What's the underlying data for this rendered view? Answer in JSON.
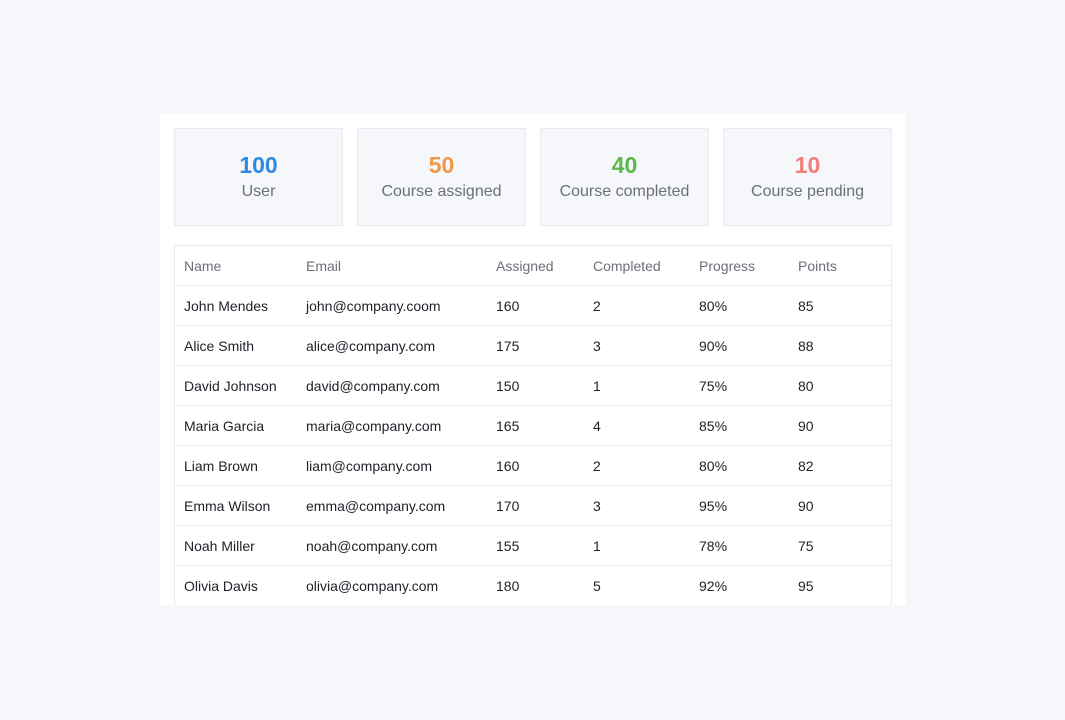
{
  "stats": [
    {
      "value": "100",
      "label": "User",
      "color": "#2f8ae0"
    },
    {
      "value": "50",
      "label": "Course assigned",
      "color": "#ef9a4a"
    },
    {
      "value": "40",
      "label": "Course completed",
      "color": "#5cb84d"
    },
    {
      "value": "10",
      "label": "Course pending",
      "color": "#ef7f7a"
    }
  ],
  "table": {
    "headers": [
      "Name",
      "Email",
      "Assigned",
      "Completed",
      "Progress",
      "Points"
    ],
    "rows": [
      [
        "John Mendes",
        "john@company.coom",
        "160",
        "2",
        "80%",
        "85"
      ],
      [
        "Alice Smith",
        "alice@company.com",
        "175",
        "3",
        "90%",
        "88"
      ],
      [
        "David Johnson",
        "david@company.com",
        "150",
        "1",
        "75%",
        "80"
      ],
      [
        "Maria Garcia",
        "maria@company.com",
        "165",
        "4",
        "85%",
        "90"
      ],
      [
        "Liam Brown",
        "liam@company.com",
        "160",
        "2",
        "80%",
        "82"
      ],
      [
        "Emma Wilson",
        "emma@company.com",
        "170",
        "3",
        "95%",
        "90"
      ],
      [
        "Noah Miller",
        "noah@company.com",
        "155",
        "1",
        "78%",
        "75"
      ],
      [
        "Olivia Davis",
        "olivia@company.com",
        "180",
        "5",
        "92%",
        "95"
      ]
    ]
  }
}
